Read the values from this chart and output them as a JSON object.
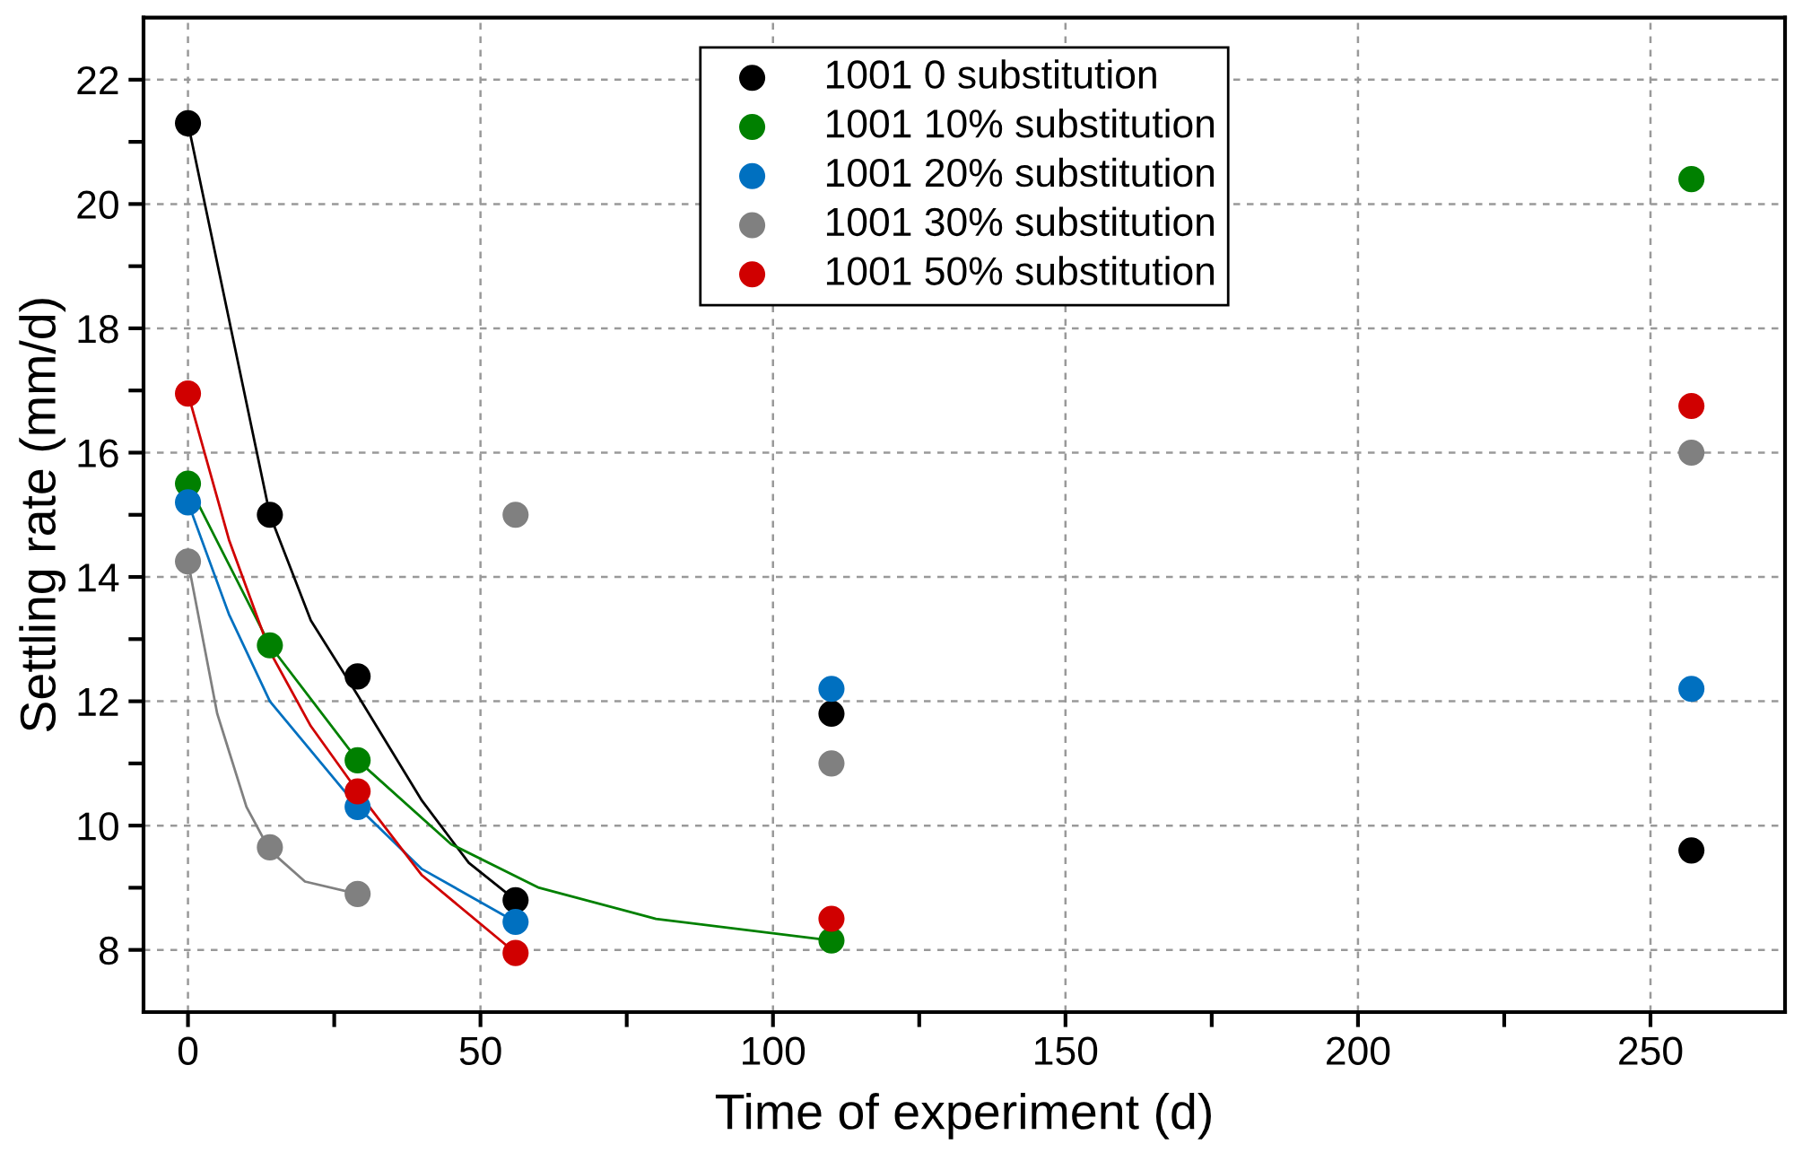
{
  "chart_data": {
    "type": "scatter",
    "xlabel": "Time of experiment (d)",
    "ylabel": "Settling rate (mm/d)",
    "xlim": [
      -7.6,
      273
    ],
    "ylim": [
      7,
      23
    ],
    "xticks": [
      0,
      {
        "value": 25,
        "label": null
      },
      50,
      {
        "value": 75,
        "label": null
      },
      100,
      {
        "value": 125,
        "label": null
      },
      150,
      {
        "value": 175,
        "label": null
      },
      200,
      {
        "value": 225,
        "label": null
      },
      250
    ],
    "yticks": [
      8,
      {
        "value": 9,
        "label": null
      },
      10,
      {
        "value": 11,
        "label": null
      },
      12,
      {
        "value": 13,
        "label": null
      },
      14,
      {
        "value": 15,
        "label": null
      },
      16,
      {
        "value": 17,
        "label": null
      },
      18,
      {
        "value": 19,
        "label": null
      },
      20,
      {
        "value": 21,
        "label": null
      },
      22
    ],
    "grid": true,
    "legend": "top",
    "series": [
      {
        "name": "1001 0 substitution",
        "marker": "circle",
        "color": "#000000",
        "x": [
          0,
          14,
          29,
          56,
          110,
          257
        ],
        "values": [
          21.3,
          15.0,
          12.4,
          8.8,
          11.8,
          9.6
        ]
      },
      {
        "name": "1001 10% substitution",
        "marker": "circle",
        "color": "#008000",
        "x": [
          0,
          14,
          29,
          110,
          257
        ],
        "values": [
          15.5,
          12.9,
          11.05,
          8.15,
          20.4
        ]
      },
      {
        "name": "1001 20% substitution",
        "marker": "circle",
        "color": "#0070c0",
        "x": [
          0,
          29,
          56,
          110,
          257
        ],
        "values": [
          15.2,
          10.3,
          8.45,
          12.2,
          12.2
        ]
      },
      {
        "name": "1001 30% substitution",
        "marker": "circle",
        "color": "#808080",
        "x": [
          0,
          14,
          29,
          56,
          110,
          257
        ],
        "values": [
          14.25,
          9.65,
          8.9,
          15.0,
          11.0,
          16.0
        ]
      },
      {
        "name": "1001 50% substitution",
        "marker": "circle",
        "color": "#d00000",
        "x": [
          0,
          29,
          56,
          110,
          257
        ],
        "values": [
          16.95,
          10.55,
          7.95,
          8.5,
          16.75
        ]
      },
      {
        "type": "line",
        "color": "#000000",
        "x": [
          0,
          14,
          21,
          29,
          40,
          48,
          56
        ],
        "values": [
          21.3,
          15.0,
          13.3,
          12.1,
          10.4,
          9.4,
          8.8
        ]
      },
      {
        "type": "line",
        "color": "#008000",
        "x": [
          0,
          14,
          29,
          45,
          60,
          80,
          110
        ],
        "values": [
          15.5,
          12.9,
          11.05,
          9.7,
          9.0,
          8.5,
          8.15
        ]
      },
      {
        "type": "line",
        "color": "#0070c0",
        "x": [
          0,
          7,
          14,
          29,
          40,
          56
        ],
        "values": [
          15.2,
          13.4,
          12.0,
          10.3,
          9.3,
          8.45
        ]
      },
      {
        "type": "line",
        "color": "#808080",
        "x": [
          0,
          5,
          10,
          14,
          20,
          29
        ],
        "values": [
          14.25,
          11.8,
          10.3,
          9.6,
          9.1,
          8.9
        ]
      },
      {
        "type": "line",
        "color": "#d00000",
        "x": [
          0,
          7,
          14,
          21,
          29,
          40,
          56
        ],
        "values": [
          16.95,
          14.6,
          12.8,
          11.6,
          10.55,
          9.2,
          7.95
        ]
      }
    ]
  }
}
